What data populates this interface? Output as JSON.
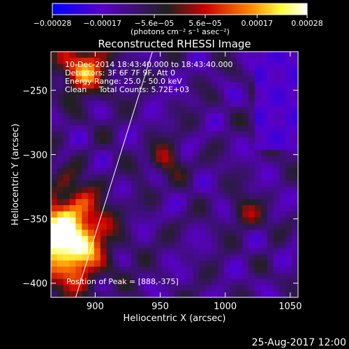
{
  "chart_data": {
    "type": "heatmap",
    "title": "Reconstructed RHESSI Image",
    "xlabel": "Heliocentric X (arcsec)",
    "ylabel": "Heliocentric Y (arcsec)",
    "xlim": [
      866,
      1056
    ],
    "ylim": [
      -411,
      -220
    ],
    "x_ticks": [
      {
        "value": 900,
        "label": "900"
      },
      {
        "value": 950,
        "label": "950"
      },
      {
        "value": 1000,
        "label": "1000"
      },
      {
        "value": 1050,
        "label": "1050"
      }
    ],
    "y_ticks": [
      {
        "value": -250,
        "label": "−250"
      },
      {
        "value": -300,
        "label": "−300"
      },
      {
        "value": -350,
        "label": "−350"
      },
      {
        "value": -400,
        "label": "−400"
      }
    ],
    "colorbar": {
      "min": -0.00028,
      "max": 0.00028,
      "ticks": [
        {
          "value": -0.00028,
          "label": "−0.00028"
        },
        {
          "value": -0.00017,
          "label": "−0.00017"
        },
        {
          "value": -5.6e-05,
          "label": "−5.6e−05"
        },
        {
          "value": 5.6e-05,
          "label": "5.6e−05"
        },
        {
          "value": 0.00017,
          "label": "0.00017"
        },
        {
          "value": 0.00028,
          "label": "0.00028"
        }
      ],
      "unit_label": "(photons cm⁻² s⁻¹ asec⁻²)",
      "colors": [
        "#0000ff",
        "#5a00c8",
        "#202020",
        "#cc0000",
        "#ff8800",
        "#ffff40",
        "#ffffff"
      ]
    },
    "info_lines": [
      "10-Dec-2014 18:43:40.000 to 18:43:40.000",
      "Detectors: 3F 6F 7F 9F, Att 0",
      "Energy Range: 25.0 - 50.0 keV",
      "Clean     Total Counts: 5.72E+03"
    ],
    "peak_label": "Position of Peak = [888,-375]",
    "peak": {
      "x": 888,
      "y": -375
    },
    "limb_line": [
      {
        "x": 885,
        "y": -411
      },
      {
        "x": 944,
        "y": -220
      }
    ],
    "grid": false,
    "legend": "none"
  },
  "footer_date": "25-Aug-2017 12:00"
}
